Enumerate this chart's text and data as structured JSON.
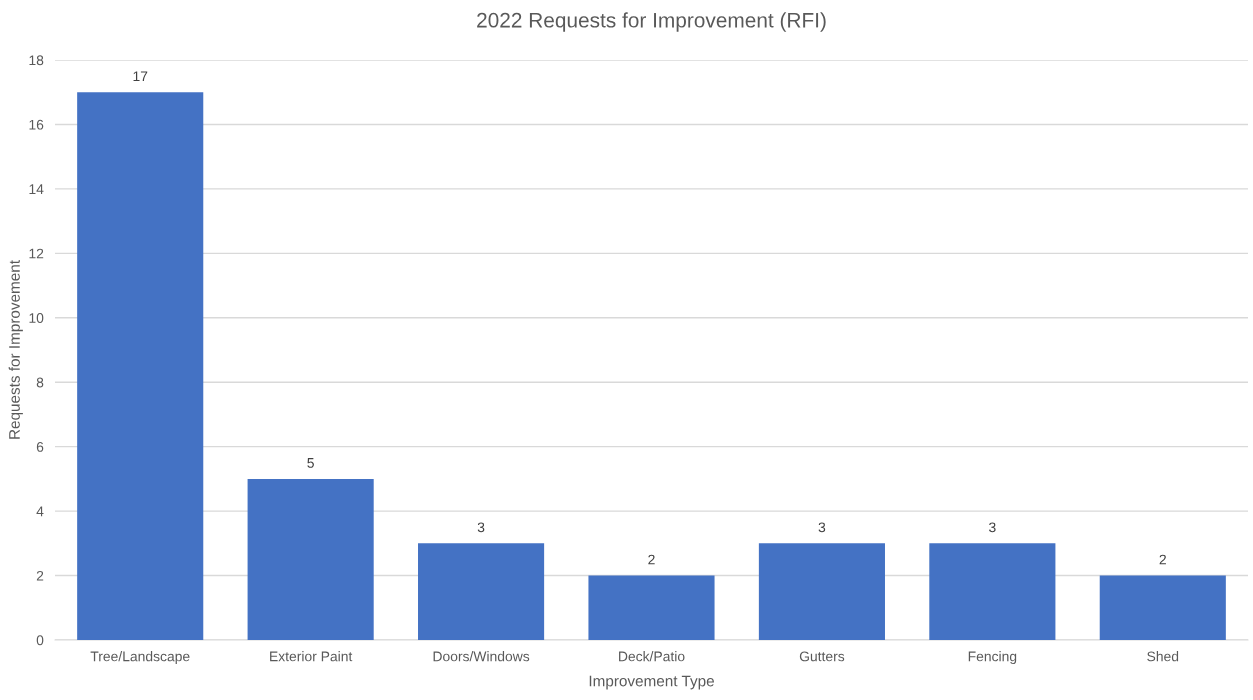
{
  "chart_data": {
    "type": "bar",
    "title": "2022 Requests for Improvement (RFI)",
    "xlabel": "Improvement Type",
    "ylabel": "Requests for Improvement",
    "categories": [
      "Tree/Landscape",
      "Exterior Paint",
      "Doors/Windows",
      "Deck/Patio",
      "Gutters",
      "Fencing",
      "Shed"
    ],
    "values": [
      17,
      5,
      3,
      2,
      3,
      3,
      2
    ],
    "color": "#4472c4",
    "data_labels": true,
    "ylim": [
      0,
      18
    ],
    "yticks": [
      0,
      2,
      4,
      6,
      8,
      10,
      12,
      14,
      16,
      18
    ],
    "grid": "y"
  }
}
